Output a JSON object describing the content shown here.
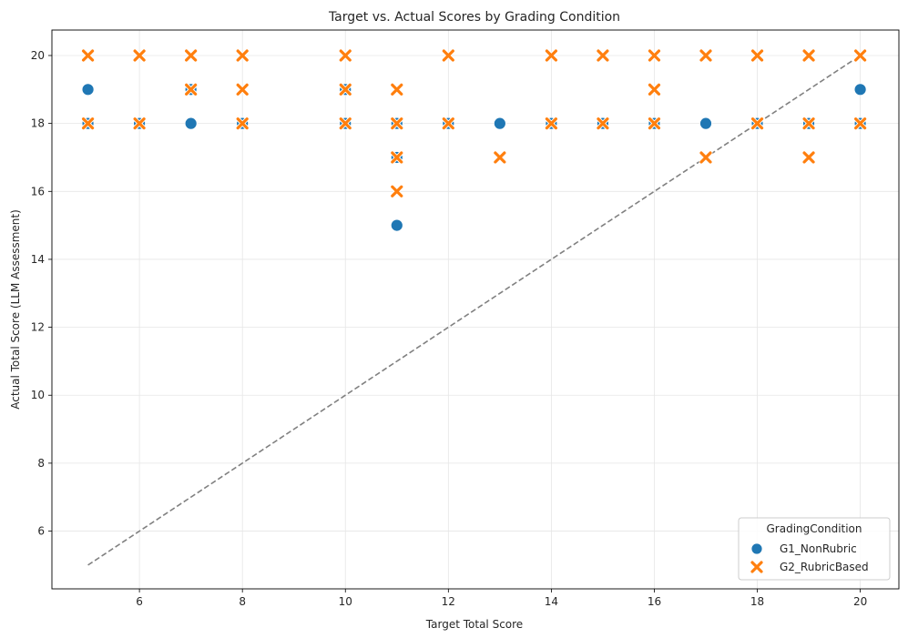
{
  "chart_data": {
    "type": "scatter",
    "title": "Target vs. Actual Scores by Grading Condition",
    "xlabel": "Target Total Score",
    "ylabel": "Actual Total Score (LLM Assessment)",
    "xlim": [
      4.3,
      20.75
    ],
    "ylim": [
      4.3,
      20.75
    ],
    "xticks": [
      6,
      8,
      10,
      12,
      14,
      16,
      18,
      20
    ],
    "yticks": [
      6,
      8,
      10,
      12,
      14,
      16,
      18,
      20
    ],
    "grid": true,
    "legend": {
      "title": "GradingCondition",
      "placement": "lower-right"
    },
    "reference_line": {
      "style": "dashed",
      "color": "#808080",
      "points": [
        [
          5,
          5
        ],
        [
          20,
          20
        ]
      ]
    },
    "series": [
      {
        "name": "G1_NonRubric",
        "marker": "circle",
        "color": "#1f77b4",
        "points": [
          [
            5,
            19
          ],
          [
            5,
            18
          ],
          [
            6,
            18
          ],
          [
            7,
            19
          ],
          [
            7,
            18
          ],
          [
            8,
            18
          ],
          [
            10,
            19
          ],
          [
            10,
            18
          ],
          [
            11,
            18
          ],
          [
            11,
            17
          ],
          [
            11,
            15
          ],
          [
            12,
            18
          ],
          [
            13,
            18
          ],
          [
            14,
            18
          ],
          [
            15,
            18
          ],
          [
            16,
            18
          ],
          [
            17,
            18
          ],
          [
            18,
            18
          ],
          [
            19,
            18
          ],
          [
            20,
            19
          ],
          [
            20,
            18
          ]
        ]
      },
      {
        "name": "G2_RubricBased",
        "marker": "x",
        "color": "#ff7f0e",
        "points": [
          [
            5,
            20
          ],
          [
            5,
            18
          ],
          [
            6,
            20
          ],
          [
            6,
            18
          ],
          [
            7,
            20
          ],
          [
            7,
            19
          ],
          [
            8,
            20
          ],
          [
            8,
            19
          ],
          [
            8,
            18
          ],
          [
            10,
            20
          ],
          [
            10,
            19
          ],
          [
            10,
            18
          ],
          [
            11,
            19
          ],
          [
            11,
            18
          ],
          [
            11,
            17
          ],
          [
            11,
            16
          ],
          [
            12,
            20
          ],
          [
            12,
            18
          ],
          [
            13,
            17
          ],
          [
            14,
            20
          ],
          [
            14,
            18
          ],
          [
            15,
            20
          ],
          [
            15,
            18
          ],
          [
            16,
            20
          ],
          [
            16,
            19
          ],
          [
            16,
            18
          ],
          [
            17,
            20
          ],
          [
            17,
            17
          ],
          [
            18,
            20
          ],
          [
            18,
            18
          ],
          [
            19,
            20
          ],
          [
            19,
            18
          ],
          [
            19,
            17
          ],
          [
            20,
            20
          ],
          [
            20,
            18
          ]
        ]
      }
    ]
  }
}
